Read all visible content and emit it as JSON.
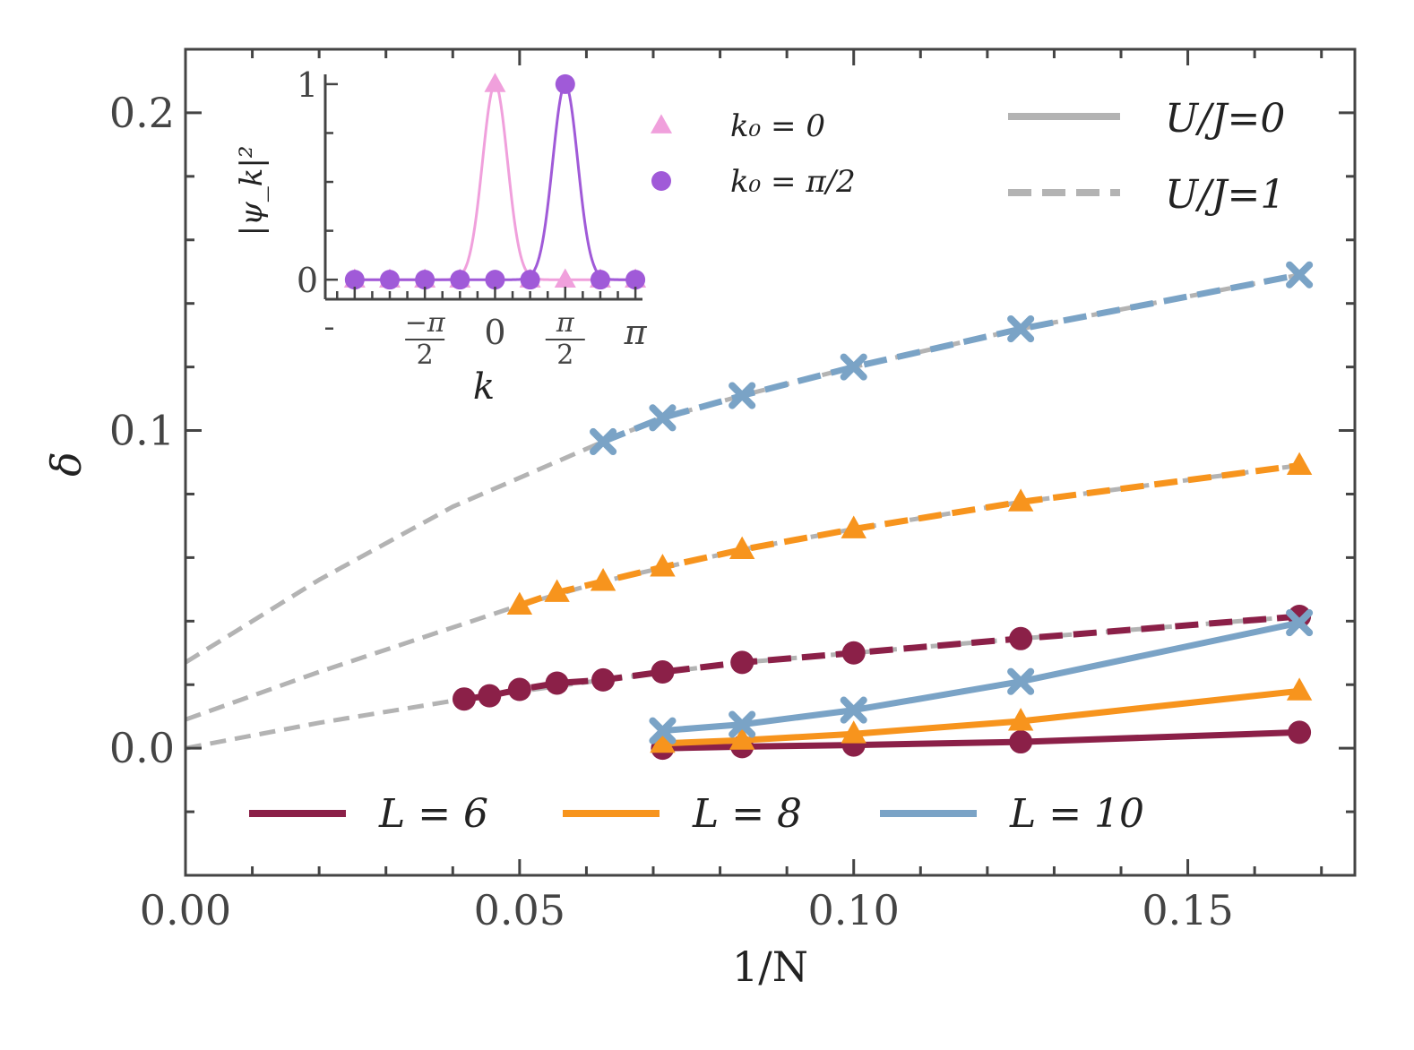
{
  "chart_data": {
    "type": "line",
    "xlabel": "1/N",
    "ylabel": "δ",
    "xlim": [
      0.0,
      0.175
    ],
    "ylim": [
      -0.04,
      0.22
    ],
    "xticks": [
      {
        "value": 0.0,
        "label": "0.00"
      },
      {
        "value": 0.05,
        "label": "0.05"
      },
      {
        "value": 0.1,
        "label": "0.10"
      },
      {
        "value": 0.15,
        "label": "0.15"
      }
    ],
    "yticks": [
      {
        "value": 0.0,
        "label": "0.0"
      },
      {
        "value": 0.1,
        "label": "0.1"
      },
      {
        "value": 0.2,
        "label": "0.2"
      }
    ],
    "grid": false,
    "legend_L": {
      "placement": "bottom",
      "entries": [
        {
          "label": "L = 6",
          "color": "#8b2048"
        },
        {
          "label": "L = 8",
          "color": "#f7941d"
        },
        {
          "label": "L = 10",
          "color": "#7aa3c6"
        }
      ]
    },
    "legend_U": {
      "placement": "top-right",
      "entries": [
        {
          "label": "U/J=0",
          "style": "solid",
          "color": "#b3b3b3"
        },
        {
          "label": "U/J=1",
          "style": "dashed",
          "color": "#b3b3b3"
        }
      ]
    },
    "series": [
      {
        "L": 6,
        "U": 1,
        "style": "dashed",
        "marker": "circle",
        "color": "#8b2048",
        "x": [
          0.0417,
          0.0455,
          0.05,
          0.0556,
          0.0625,
          0.0714,
          0.0833,
          0.1,
          0.125,
          0.1667
        ],
        "y": [
          0.0155,
          0.0165,
          0.0185,
          0.0205,
          0.0215,
          0.024,
          0.027,
          0.03,
          0.0345,
          0.0415
        ]
      },
      {
        "L": 8,
        "U": 1,
        "style": "dashed",
        "marker": "triangle",
        "color": "#f7941d",
        "x": [
          0.05,
          0.0556,
          0.0625,
          0.0714,
          0.0833,
          0.1,
          0.125,
          0.1667
        ],
        "y": [
          0.045,
          0.049,
          0.0525,
          0.057,
          0.0625,
          0.069,
          0.0775,
          0.089
        ]
      },
      {
        "L": 10,
        "U": 1,
        "style": "dashed",
        "marker": "cross",
        "color": "#7aa3c6",
        "x": [
          0.0625,
          0.0714,
          0.0833,
          0.1,
          0.125,
          0.1667
        ],
        "y": [
          0.0965,
          0.104,
          0.111,
          0.12,
          0.132,
          0.149
        ]
      },
      {
        "L": 6,
        "U": 0,
        "style": "solid",
        "marker": "circle",
        "color": "#8b2048",
        "x": [
          0.0714,
          0.0833,
          0.1,
          0.125,
          0.1667
        ],
        "y": [
          0.0,
          0.0005,
          0.001,
          0.002,
          0.005
        ]
      },
      {
        "L": 8,
        "U": 0,
        "style": "solid",
        "marker": "triangle",
        "color": "#f7941d",
        "x": [
          0.0714,
          0.0833,
          0.1,
          0.125,
          0.1667
        ],
        "y": [
          0.0015,
          0.0025,
          0.0045,
          0.0085,
          0.018
        ]
      },
      {
        "L": 10,
        "U": 0,
        "style": "solid",
        "marker": "cross",
        "color": "#7aa3c6",
        "x": [
          0.0714,
          0.0833,
          0.1,
          0.125,
          0.1667
        ],
        "y": [
          0.0055,
          0.0075,
          0.012,
          0.021,
          0.0395
        ]
      }
    ],
    "fits": [
      {
        "color": "#b3b3b3",
        "style": "dashed",
        "x": [
          0.0,
          0.02,
          0.04,
          0.0625,
          0.0714,
          0.0833,
          0.1,
          0.125,
          0.1667
        ],
        "y": [
          0.027,
          0.053,
          0.076,
          0.0965,
          0.104,
          0.111,
          0.12,
          0.132,
          0.149
        ]
      },
      {
        "color": "#b3b3b3",
        "style": "dashed",
        "x": [
          0.0,
          0.02,
          0.04,
          0.05,
          0.0625,
          0.0833,
          0.1,
          0.125,
          0.1667
        ],
        "y": [
          0.009,
          0.024,
          0.038,
          0.045,
          0.0525,
          0.0625,
          0.069,
          0.0775,
          0.089
        ]
      },
      {
        "color": "#b3b3b3",
        "style": "dashed",
        "x": [
          0.0,
          0.02,
          0.0417,
          0.0625,
          0.0833,
          0.1,
          0.125,
          0.1667
        ],
        "y": [
          0.0,
          0.008,
          0.0155,
          0.0215,
          0.027,
          0.03,
          0.0345,
          0.0415
        ]
      }
    ],
    "inset": {
      "xlabel": "k",
      "ylabel": "|ψ_k|²",
      "xlim": [
        -3.8,
        3.3
      ],
      "ylim": [
        -0.1,
        1.05
      ],
      "xticks": [
        {
          "value": -1.5708,
          "num": "−π",
          "den": "2"
        },
        {
          "value": 0,
          "label": "0"
        },
        {
          "value": 1.5708,
          "num": "π",
          "den": "2"
        },
        {
          "value": 3.1416,
          "label": "π"
        }
      ],
      "yticks": [
        {
          "value": 0,
          "label": "0"
        },
        {
          "value": 1,
          "label": "1"
        }
      ],
      "legend": [
        {
          "label": "k₀ = 0",
          "marker": "triangle",
          "color": "#f0a0dc"
        },
        {
          "label": "k₀ = π/2",
          "marker": "circle",
          "color": "#a05ad8"
        }
      ],
      "series": [
        {
          "name": "k0=0",
          "marker": "triangle",
          "color": "#f0a0dc",
          "x": [
            -3.1416,
            -2.3562,
            -1.5708,
            -0.7854,
            0,
            0.7854,
            1.5708,
            2.3562,
            3.1416
          ],
          "y": [
            0,
            0,
            0,
            0,
            1,
            0,
            0,
            0,
            0
          ]
        },
        {
          "name": "k0=pi/2",
          "marker": "circle",
          "color": "#a05ad8",
          "x": [
            -3.1416,
            -2.3562,
            -1.5708,
            -0.7854,
            0,
            0.7854,
            1.5708,
            2.3562,
            3.1416
          ],
          "y": [
            0,
            0,
            0,
            0,
            0,
            0,
            1,
            0,
            0
          ]
        }
      ]
    }
  }
}
